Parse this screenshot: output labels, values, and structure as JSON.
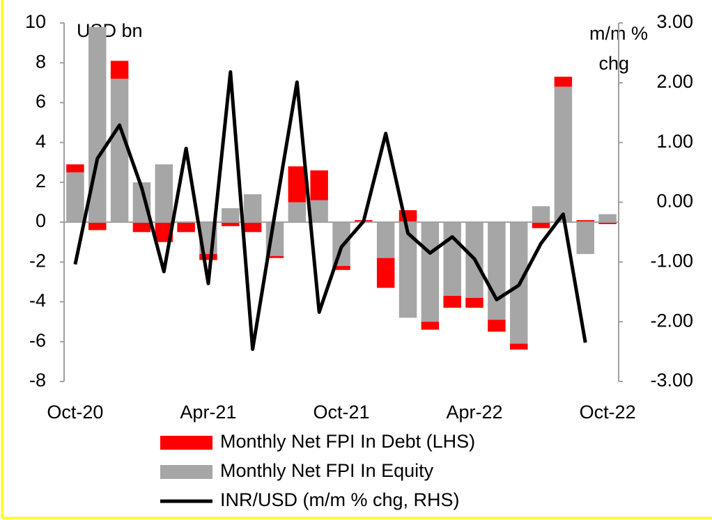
{
  "chart_data": {
    "type": "bar",
    "stacked": true,
    "y_label": "USD bn",
    "y2_label": [
      "m/m %",
      "chg"
    ],
    "categories": [
      "Oct-20",
      null,
      null,
      null,
      null,
      null,
      "Apr-21",
      null,
      null,
      null,
      null,
      null,
      "Oct-21",
      null,
      null,
      null,
      null,
      null,
      "Apr-22",
      null,
      null,
      null,
      null,
      null,
      "Oct-22"
    ],
    "ylim": [
      -8,
      10
    ],
    "yticks": [
      -8,
      -6,
      -4,
      -2,
      0,
      2,
      4,
      6,
      8,
      10
    ],
    "y2lim": [
      -3,
      3
    ],
    "y2ticks": [
      {
        "value": -3,
        "label": "-3.00"
      },
      {
        "value": -2,
        "label": "-2.00"
      },
      {
        "value": -1,
        "label": "-1.00"
      },
      {
        "value": 0,
        "label": "0.00"
      },
      {
        "value": 1,
        "label": "1.00"
      },
      {
        "value": 2,
        "label": "2.00"
      },
      {
        "value": 3,
        "label": "3.00"
      }
    ],
    "series": [
      {
        "name": "Monthly Net FPI In Debt (LHS)",
        "type": "bar",
        "color": "#ff0000",
        "values": [
          0.4,
          -0.4,
          0.9,
          -0.5,
          -1.0,
          -0.5,
          -0.3,
          -0.2,
          -0.5,
          -0.1,
          1.8,
          1.5,
          -0.2,
          0.1,
          -1.5,
          0.6,
          -0.4,
          -0.6,
          -0.5,
          -0.6,
          -0.3,
          -0.3,
          0.5,
          0.1,
          -0.1
        ]
      },
      {
        "name": "Monthly Net FPI In Equity",
        "type": "bar",
        "color": "#a6a6a6",
        "values": [
          2.5,
          9.8,
          7.2,
          2.0,
          2.9,
          0.0,
          -1.6,
          0.7,
          1.4,
          -1.7,
          1.0,
          1.1,
          -2.2,
          0.0,
          -1.8,
          -4.8,
          -5.0,
          -3.7,
          -3.8,
          -4.9,
          -6.1,
          0.8,
          6.8,
          -1.6,
          0.4
        ]
      },
      {
        "name": "INR/USD (m/m % chg, RHS)",
        "type": "line",
        "axis": "y2",
        "color": "#000000",
        "values": [
          -1.04,
          0.73,
          1.29,
          0.24,
          -1.16,
          0.9,
          -1.36,
          2.18,
          -2.46,
          -0.2,
          2.01,
          -1.84,
          -0.75,
          -0.32,
          1.15,
          -0.52,
          -0.85,
          -0.58,
          -0.95,
          -1.63,
          -1.39,
          -0.69,
          -0.2,
          -2.35,
          null
        ]
      }
    ]
  }
}
